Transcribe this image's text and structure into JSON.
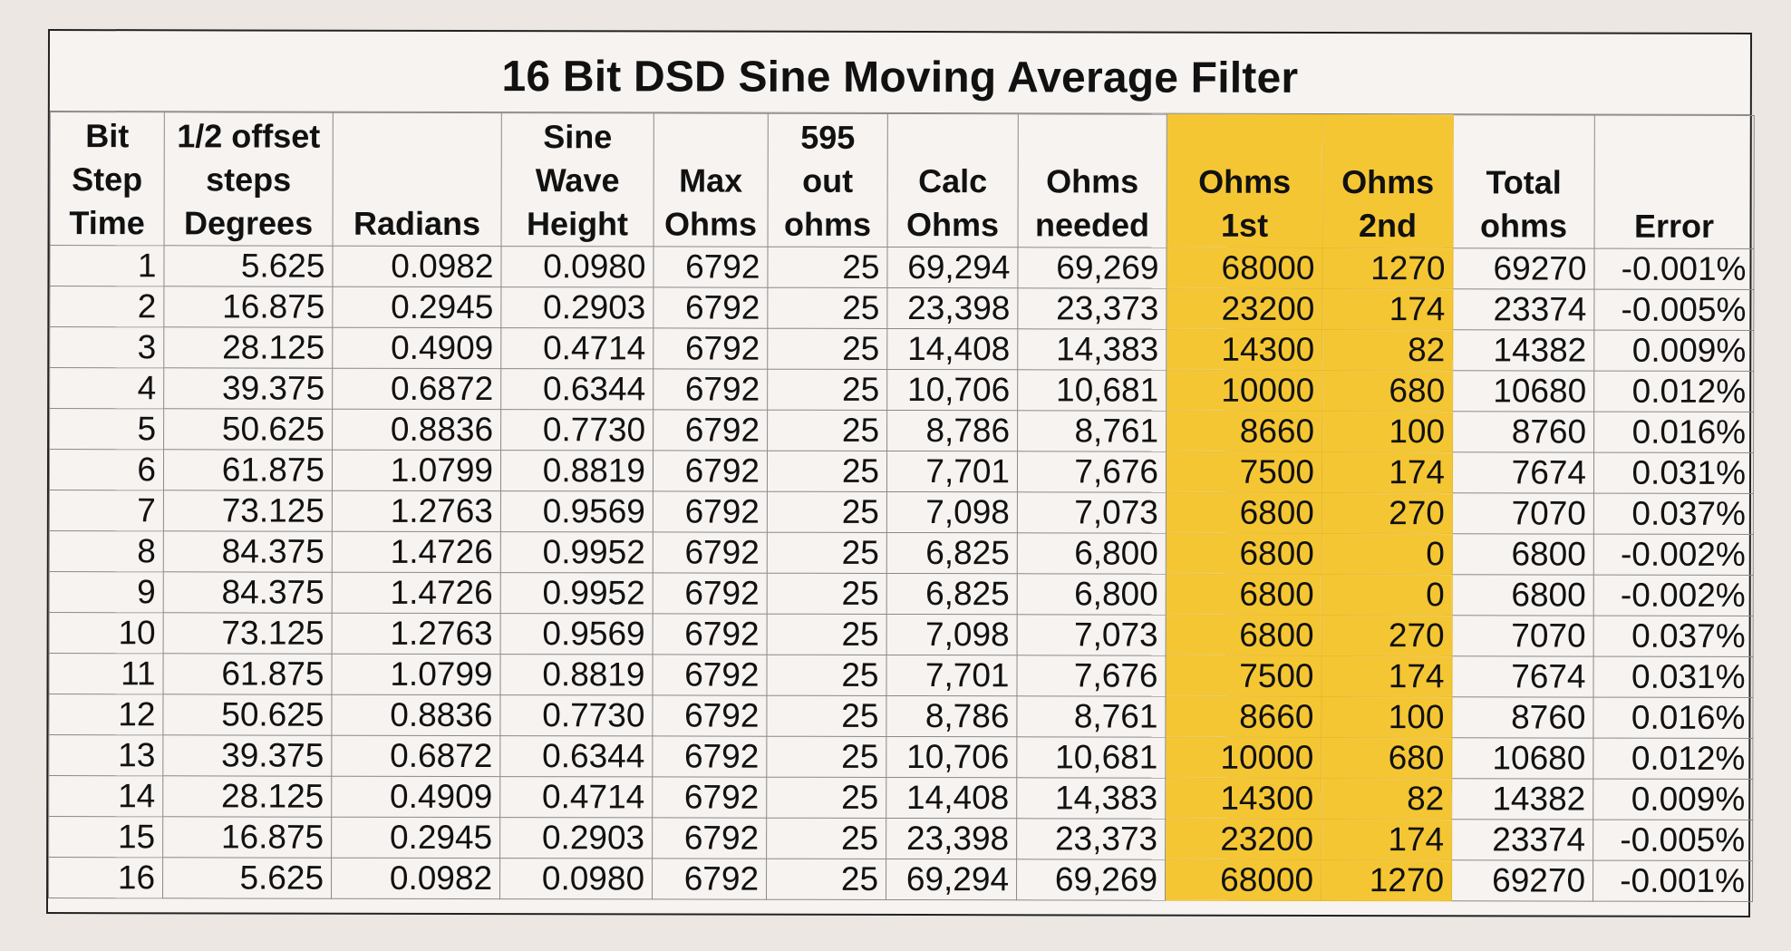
{
  "title": "16 Bit DSD Sine Moving Average Filter",
  "colors": {
    "highlight": "#f5c634",
    "paper": "#f6f3f1",
    "background": "#ece7e3"
  },
  "headers": [
    [
      "Bit",
      "Step",
      "Time"
    ],
    [
      "1/2 offset",
      "steps",
      "Degrees"
    ],
    [
      "Radians"
    ],
    [
      "Sine",
      "Wave",
      "Height"
    ],
    [
      "Max",
      "Ohms"
    ],
    [
      "595",
      "out",
      "ohms"
    ],
    [
      "Calc",
      "Ohms"
    ],
    [
      "Ohms",
      "needed"
    ],
    [
      "Ohms",
      "1st"
    ],
    [
      "Ohms",
      "2nd"
    ],
    [
      "Total",
      "ohms"
    ],
    [
      "Error"
    ]
  ],
  "rows": [
    [
      "1",
      "5.625",
      "0.0982",
      "0.0980",
      "6792",
      "25",
      "69,294",
      "69,269",
      "68000",
      "1270",
      "69270",
      "-0.001%"
    ],
    [
      "2",
      "16.875",
      "0.2945",
      "0.2903",
      "6792",
      "25",
      "23,398",
      "23,373",
      "23200",
      "174",
      "23374",
      "-0.005%"
    ],
    [
      "3",
      "28.125",
      "0.4909",
      "0.4714",
      "6792",
      "25",
      "14,408",
      "14,383",
      "14300",
      "82",
      "14382",
      "0.009%"
    ],
    [
      "4",
      "39.375",
      "0.6872",
      "0.6344",
      "6792",
      "25",
      "10,706",
      "10,681",
      "10000",
      "680",
      "10680",
      "0.012%"
    ],
    [
      "5",
      "50.625",
      "0.8836",
      "0.7730",
      "6792",
      "25",
      "8,786",
      "8,761",
      "8660",
      "100",
      "8760",
      "0.016%"
    ],
    [
      "6",
      "61.875",
      "1.0799",
      "0.8819",
      "6792",
      "25",
      "7,701",
      "7,676",
      "7500",
      "174",
      "7674",
      "0.031%"
    ],
    [
      "7",
      "73.125",
      "1.2763",
      "0.9569",
      "6792",
      "25",
      "7,098",
      "7,073",
      "6800",
      "270",
      "7070",
      "0.037%"
    ],
    [
      "8",
      "84.375",
      "1.4726",
      "0.9952",
      "6792",
      "25",
      "6,825",
      "6,800",
      "6800",
      "0",
      "6800",
      "-0.002%"
    ],
    [
      "9",
      "84.375",
      "1.4726",
      "0.9952",
      "6792",
      "25",
      "6,825",
      "6,800",
      "6800",
      "0",
      "6800",
      "-0.002%"
    ],
    [
      "10",
      "73.125",
      "1.2763",
      "0.9569",
      "6792",
      "25",
      "7,098",
      "7,073",
      "6800",
      "270",
      "7070",
      "0.037%"
    ],
    [
      "11",
      "61.875",
      "1.0799",
      "0.8819",
      "6792",
      "25",
      "7,701",
      "7,676",
      "7500",
      "174",
      "7674",
      "0.031%"
    ],
    [
      "12",
      "50.625",
      "0.8836",
      "0.7730",
      "6792",
      "25",
      "8,786",
      "8,761",
      "8660",
      "100",
      "8760",
      "0.016%"
    ],
    [
      "13",
      "39.375",
      "0.6872",
      "0.6344",
      "6792",
      "25",
      "10,706",
      "10,681",
      "10000",
      "680",
      "10680",
      "0.012%"
    ],
    [
      "14",
      "28.125",
      "0.4909",
      "0.4714",
      "6792",
      "25",
      "14,408",
      "14,383",
      "14300",
      "82",
      "14382",
      "0.009%"
    ],
    [
      "15",
      "16.875",
      "0.2945",
      "0.2903",
      "6792",
      "25",
      "23,398",
      "23,373",
      "23200",
      "174",
      "23374",
      "-0.005%"
    ],
    [
      "16",
      "5.625",
      "0.0982",
      "0.0980",
      "6792",
      "25",
      "69,294",
      "69,269",
      "68000",
      "1270",
      "69270",
      "-0.001%"
    ]
  ]
}
